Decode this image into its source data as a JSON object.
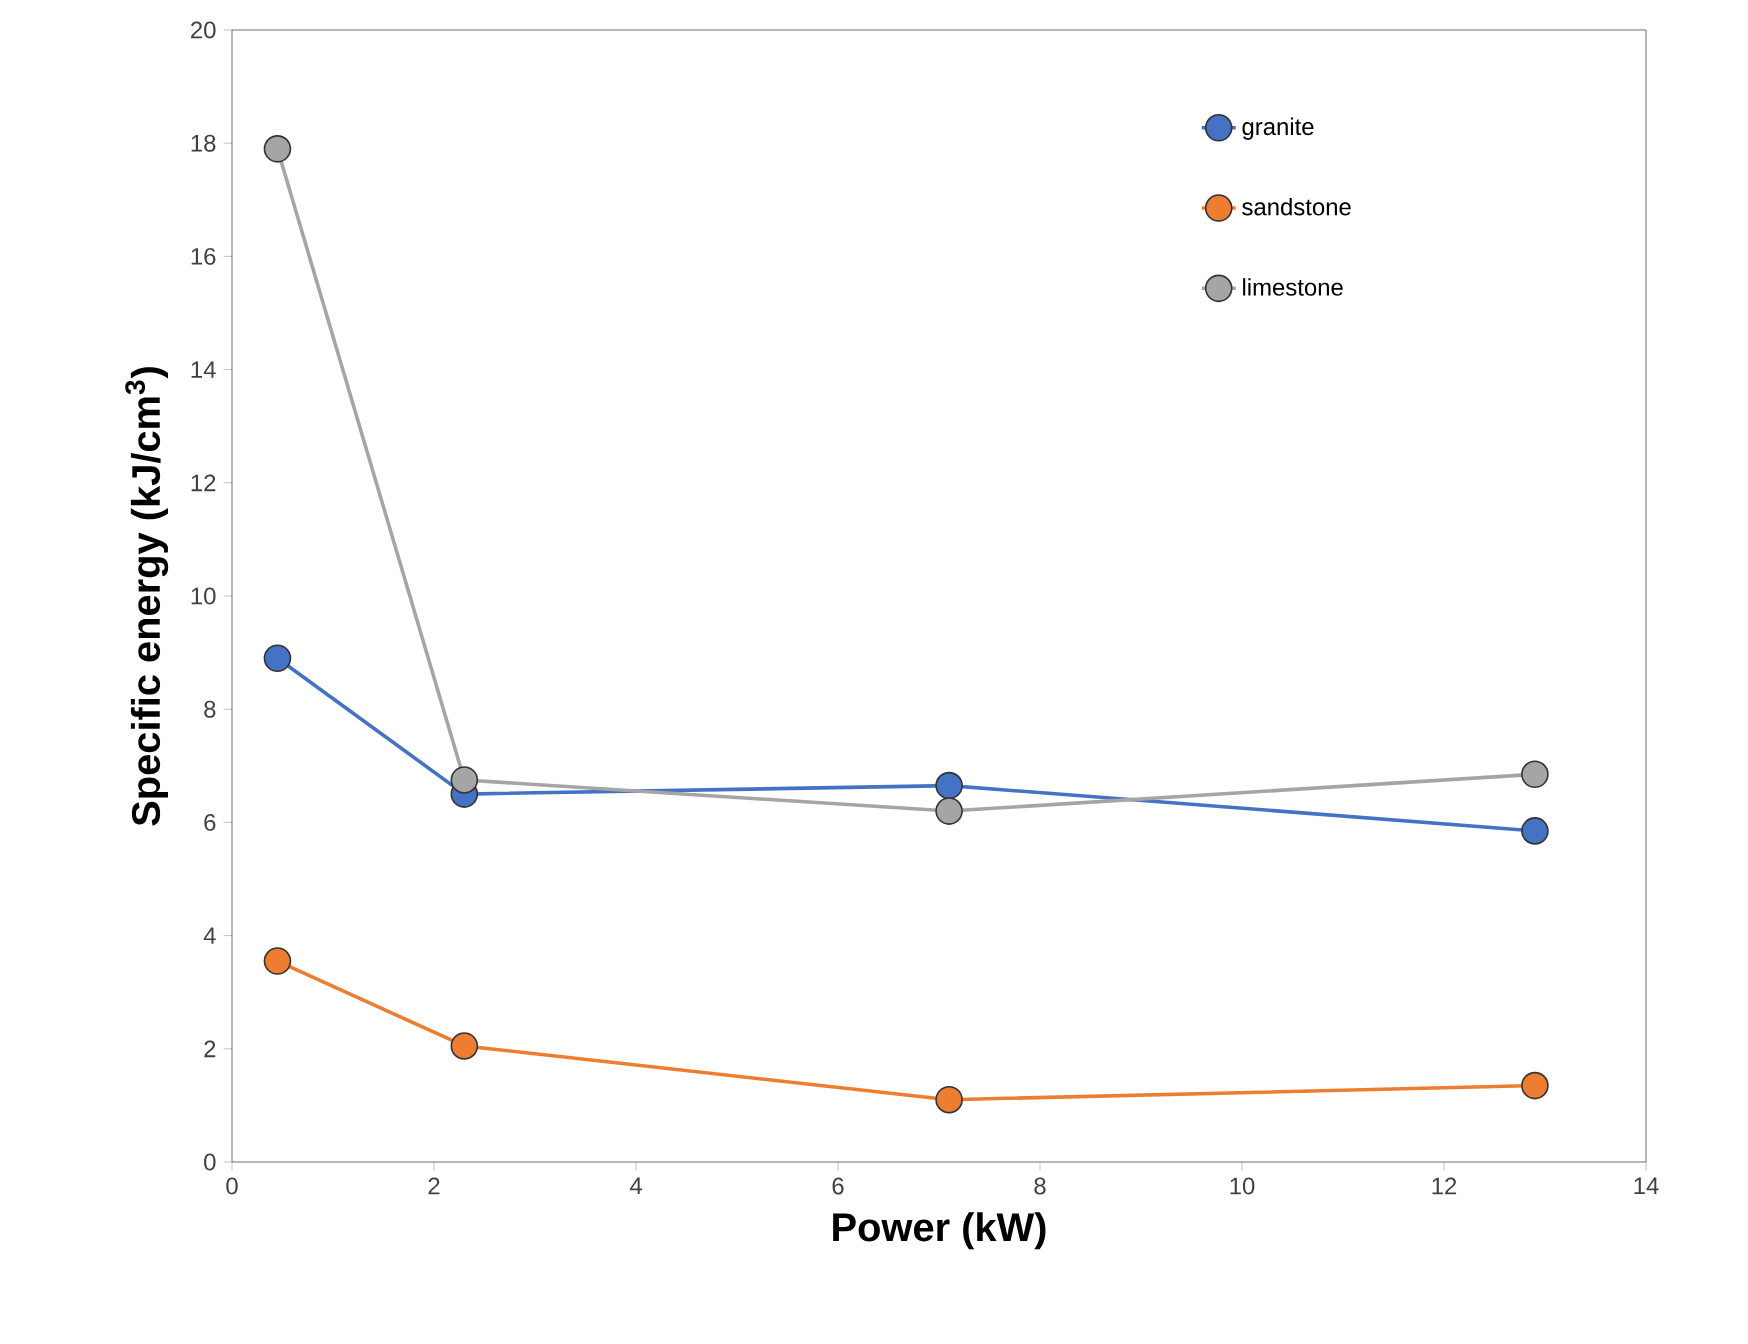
{
  "chart_data": {
    "type": "line",
    "xlabel": "Power (kW)",
    "ylabel": "Specific energy  (kJ/cm$^{3}$)",
    "x": [
      0.45,
      2.3,
      7.1,
      12.9
    ],
    "series": [
      {
        "name": "granite",
        "color": "#4472c4",
        "values": [
          8.9,
          6.5,
          6.65,
          5.85
        ]
      },
      {
        "name": "sandstone",
        "color": "#ed7d31",
        "values": [
          3.55,
          2.05,
          1.1,
          1.35
        ]
      },
      {
        "name": "limestone",
        "color": "#a5a5a5",
        "values": [
          17.9,
          6.75,
          6.2,
          6.85
        ]
      }
    ],
    "xlim": [
      0,
      14
    ],
    "xticks": [
      0,
      2,
      4,
      6,
      8,
      10,
      12,
      14
    ],
    "ylim": [
      0,
      20
    ],
    "yticks": [
      0,
      2,
      4,
      6,
      8,
      10,
      12,
      14,
      16,
      18,
      20
    ],
    "grid": false,
    "legend": "top right",
    "marker": "circle",
    "line_style": "solid"
  }
}
